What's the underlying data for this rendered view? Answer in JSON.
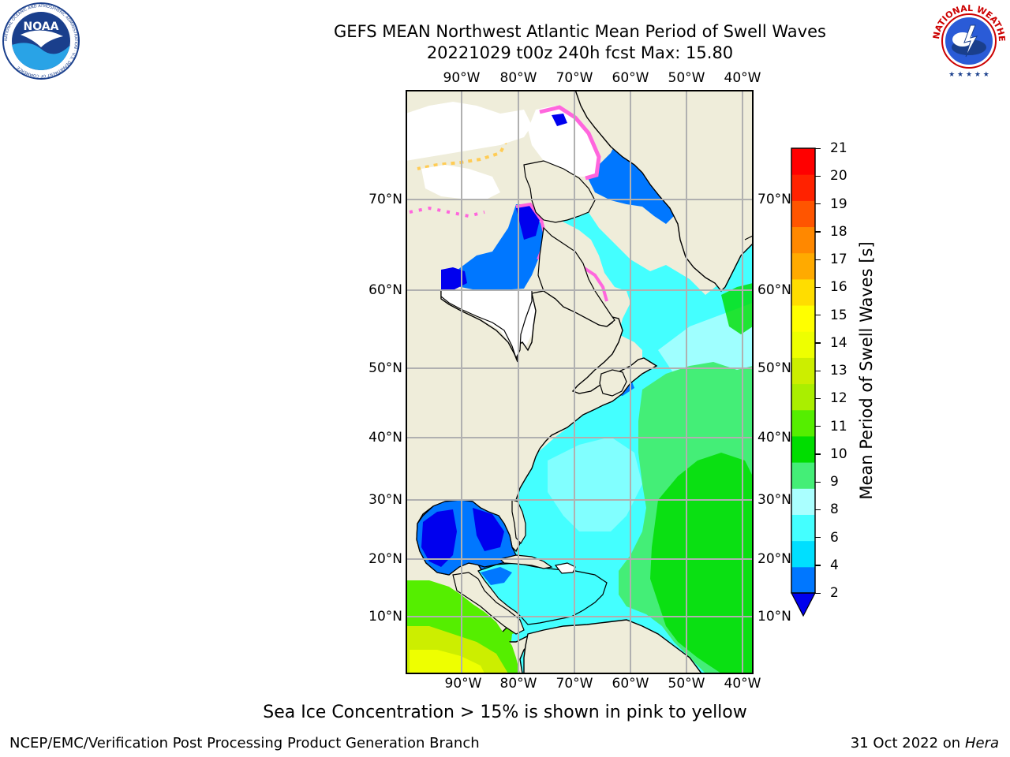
{
  "header": {
    "title_line1": "GEFS MEAN Northwest Atlantic Mean Period of Swell Waves",
    "title_line2": "20221029 t00z 240h fcst   Max: 15.80"
  },
  "logos": {
    "left": {
      "name": "noaa-logo",
      "text": "NOAA",
      "ring_text": "NATIONAL OCEANIC AND ATMOSPHERIC ADMINISTRATION · U.S. DEPARTMENT OF COMMERCE"
    },
    "right": {
      "name": "nws-logo",
      "ring_text": "NATIONAL WEATHER SERVICE"
    }
  },
  "map": {
    "lon_labels": [
      "90°W",
      "80°W",
      "70°W",
      "60°W",
      "50°W",
      "40°W"
    ],
    "lat_labels": [
      "70°N",
      "60°N",
      "50°N",
      "40°N",
      "30°N",
      "20°N",
      "10°N"
    ],
    "colors": {
      "land": "#efedda",
      "grid": "#b0b0b0",
      "ice": "#ffffff",
      "ice_edge_pink": "#ff66dd",
      "ice_edge_yellow": "#ffcc55"
    }
  },
  "colorbar": {
    "label": "Mean Period of Swell Waves [s]",
    "ticks": [
      "2",
      "4",
      "6",
      "8",
      "9",
      "10",
      "11",
      "12",
      "13",
      "14",
      "15",
      "16",
      "17",
      "18",
      "19",
      "20",
      "21"
    ],
    "under_color": "#0000ee",
    "colors": [
      "#0077ff",
      "#00dfff",
      "#44ffff",
      "#aaffff",
      "#44ee77",
      "#00dd00",
      "#55ee00",
      "#aaee00",
      "#ccee00",
      "#eeff00",
      "#ffff00",
      "#ffdd00",
      "#ffaa00",
      "#ff8800",
      "#ff5500",
      "#ff2200",
      "#ff0000"
    ]
  },
  "note": "Sea Ice Concentration > 15% is shown in pink to yellow",
  "footer": {
    "left": "NCEP/EMC/Verification Post Processing Product Generation Branch",
    "right_prefix": "31 Oct 2022 on ",
    "right_italic": "Hera"
  }
}
